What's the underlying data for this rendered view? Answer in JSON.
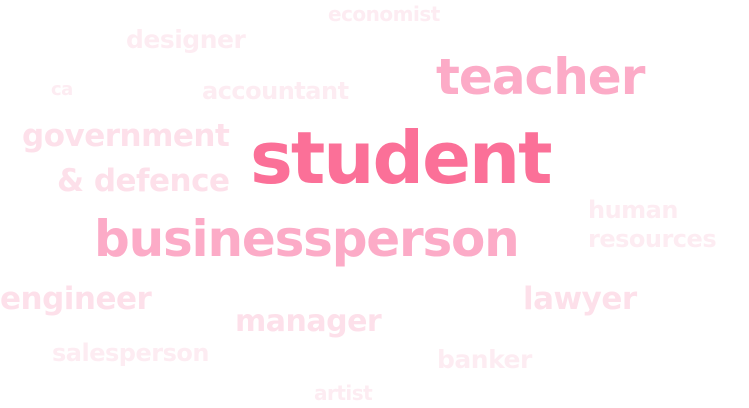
{
  "word_cloud": {
    "words": {
      "student": {
        "text": "student",
        "color": "#fb7098"
      },
      "businessperson": {
        "text": "businessperson",
        "color": "#fcabc7"
      },
      "teacher": {
        "text": "teacher",
        "color": "#fcabc7"
      },
      "government": {
        "text": "government",
        "color": "#fde0ea"
      },
      "defence": {
        "text": "& defence",
        "color": "#fde0ea"
      },
      "lawyer": {
        "text": "lawyer",
        "color": "#fde0ea"
      },
      "engineer": {
        "text": "engineer",
        "color": "#fde0ea"
      },
      "manager": {
        "text": "manager",
        "color": "#fde0ea"
      },
      "human_resources": {
        "line1": "human",
        "line2": "resources",
        "color": "#fdecf2"
      },
      "designer": {
        "text": "designer",
        "color": "#fdecf2"
      },
      "accountant": {
        "text": "accountant",
        "color": "#fdecf2"
      },
      "banker": {
        "text": "banker",
        "color": "#fdecf2"
      },
      "salesperson": {
        "text": "salesperson",
        "color": "#fdecf2"
      },
      "economist": {
        "text": "economist",
        "color": "#fdecf2"
      },
      "artist": {
        "text": "artist",
        "color": "#fdecf2"
      },
      "ca": {
        "text": "ca",
        "color": "#fdecf2"
      }
    }
  }
}
